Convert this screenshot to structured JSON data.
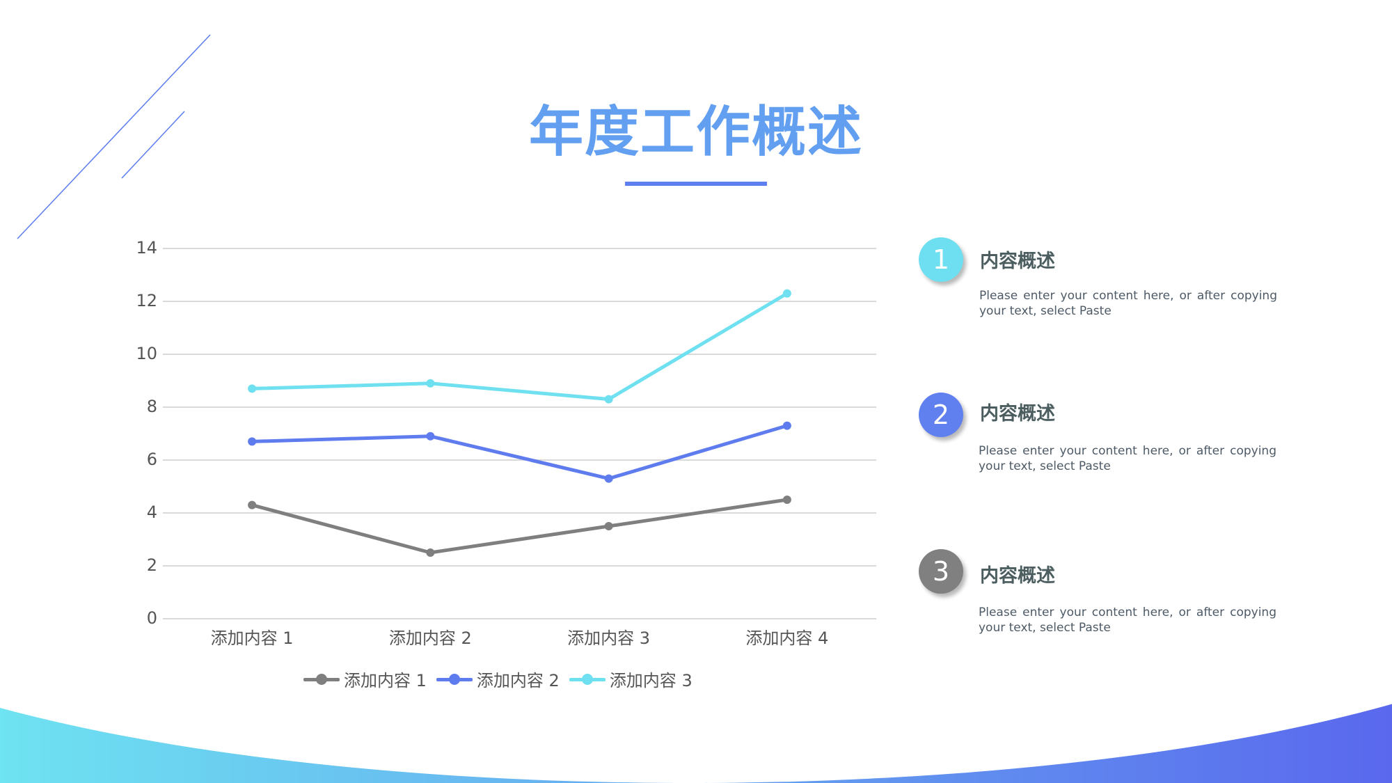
{
  "slide": {
    "title": "年度工作概述",
    "colors": {
      "title": "#629ff0",
      "accent": "#5d7ff0",
      "gradient_start": "#6ee3f1",
      "gradient_end": "#5a68ee"
    }
  },
  "chart_data": {
    "type": "line",
    "title": "",
    "xlabel": "",
    "ylabel": "",
    "categories": [
      "添加内容 1",
      "添加内容 2",
      "添加内容 3",
      "添加内容 4"
    ],
    "series": [
      {
        "name": "添加内容 1",
        "color": "#7f7f7f",
        "values": [
          4.3,
          2.5,
          3.5,
          4.5
        ]
      },
      {
        "name": "添加内容 2",
        "color": "#5f7cef",
        "values": [
          6.7,
          6.9,
          5.3,
          7.3
        ]
      },
      {
        "name": "添加内容 3",
        "color": "#6fe0f0",
        "values": [
          8.7,
          8.9,
          8.3,
          12.3
        ]
      }
    ],
    "yticks": [
      "0",
      "2",
      "4",
      "6",
      "8",
      "10",
      "12",
      "14"
    ],
    "ylim": [
      0,
      14
    ],
    "grid": true,
    "legend_position": "bottom",
    "markers": true
  },
  "items": [
    {
      "number": "1",
      "color": "#6ddff1",
      "title": "内容概述",
      "body": "Please enter your content here, or after copying your text, select Paste"
    },
    {
      "number": "2",
      "color": "#6080ef",
      "title": "内容概述",
      "body": "Please enter your content here, or after copying your text, select Paste"
    },
    {
      "number": "3",
      "color": "#808080",
      "title": "内容概述",
      "body": "Please enter your content here, or after copying your text, select Paste"
    }
  ]
}
